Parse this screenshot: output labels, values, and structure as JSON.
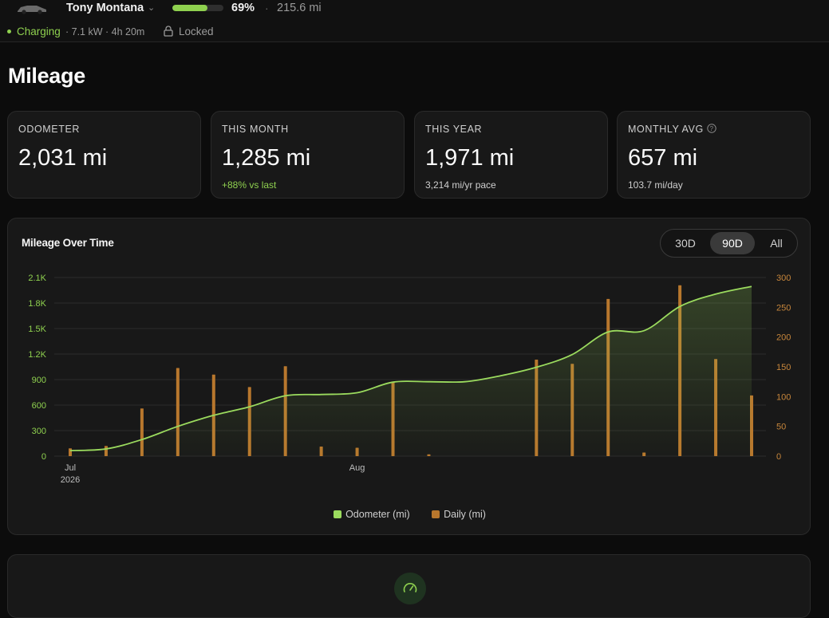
{
  "topbar": {
    "vehicle_name": "Tony Montana",
    "battery_percent_label": "69%",
    "battery_level": 0.69,
    "separator": "·",
    "range": "215.6 mi",
    "charging_status": "Charging",
    "charge_info": "· 7.1 kW · 4h 20m",
    "lock_status": "Locked",
    "icons": [
      "car-icon",
      "chevron-down-icon",
      "lock-icon"
    ]
  },
  "page": {
    "title": "Mileage"
  },
  "stats": [
    {
      "label": "ODOMETER",
      "value": "2,031 mi",
      "sub": ""
    },
    {
      "label": "THIS MONTH",
      "value": "1,285 mi",
      "sub": "+88% vs last"
    },
    {
      "label": "THIS YEAR",
      "value": "1,971 mi",
      "sub": "3,214 mi/yr pace"
    },
    {
      "label": "MONTHLY AVG",
      "value": "657 mi",
      "sub": "103.7 mi/day"
    }
  ],
  "chart": {
    "title": "Mileage Over Time",
    "ranges": [
      "30D",
      "90D",
      "All"
    ],
    "active_range": "90D"
  },
  "colors": {
    "accent_green": "#8fd14f",
    "odometer_line": "#9bdb5e",
    "daily_bar": "#b8772d",
    "right_axis": "#c7863b"
  },
  "chart_data": {
    "type": "line",
    "x_ticks": [
      {
        "label": "Jul",
        "sublabel": "2026",
        "index": 0
      },
      {
        "label": "Aug",
        "index": 8
      }
    ],
    "left_axis": {
      "ticks": [
        "0",
        "300",
        "600",
        "900",
        "1.2K",
        "1.5K",
        "1.8K",
        "2.1K"
      ],
      "ylim": [
        0,
        2100
      ]
    },
    "right_axis": {
      "ticks": [
        "0",
        "50",
        "100",
        "150",
        "200",
        "250",
        "300"
      ],
      "ylim": [
        0,
        300
      ]
    },
    "grid": true,
    "legend": "bottom-center",
    "series": [
      {
        "name": "Odometer (mi)",
        "type": "area-line",
        "axis": "left",
        "values": [
          65,
          85,
          195,
          350,
          480,
          580,
          710,
          725,
          745,
          870,
          875,
          875,
          945,
          1045,
          1195,
          1460,
          1475,
          1760,
          1905,
          1995
        ]
      },
      {
        "name": "Daily (mi)",
        "type": "bar",
        "axis": "right",
        "values": [
          13,
          17,
          80,
          148,
          137,
          116,
          151,
          16,
          14,
          125,
          3,
          0,
          0,
          162,
          155,
          264,
          6,
          287,
          163,
          102
        ]
      }
    ]
  },
  "bottom_card": {
    "icon": "gauge-icon"
  }
}
